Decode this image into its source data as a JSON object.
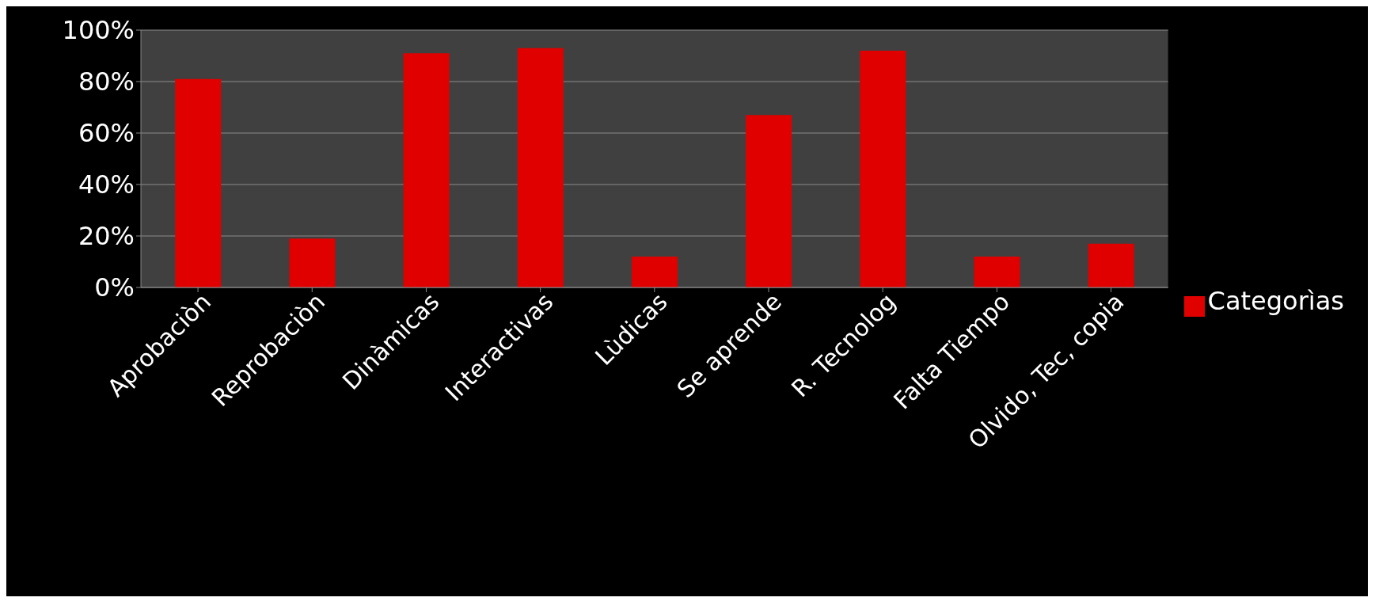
{
  "chart_data": {
    "type": "bar",
    "categories": [
      "Aprobaciòn",
      "Reprobaciòn",
      "Dinàmicas",
      "Interactivas",
      "Lùdicas",
      "Se aprende",
      "R. Tecnolog",
      "Falta Tiempo",
      "Olvido, Tec, copia"
    ],
    "series": [
      {
        "name": "Categorìas",
        "color": "#e00000",
        "values": [
          81,
          19,
          91,
          93,
          12,
          67,
          92,
          12,
          17
        ]
      }
    ],
    "ylim": [
      0,
      100
    ],
    "yticks": [
      {
        "value": 0,
        "label": "0%"
      },
      {
        "value": 20,
        "label": "20%"
      },
      {
        "value": 40,
        "label": "40%"
      },
      {
        "value": 60,
        "label": "60%"
      },
      {
        "value": 80,
        "label": "80%"
      },
      {
        "value": 100,
        "label": "100%"
      }
    ],
    "grid": "y",
    "legend": "right"
  }
}
